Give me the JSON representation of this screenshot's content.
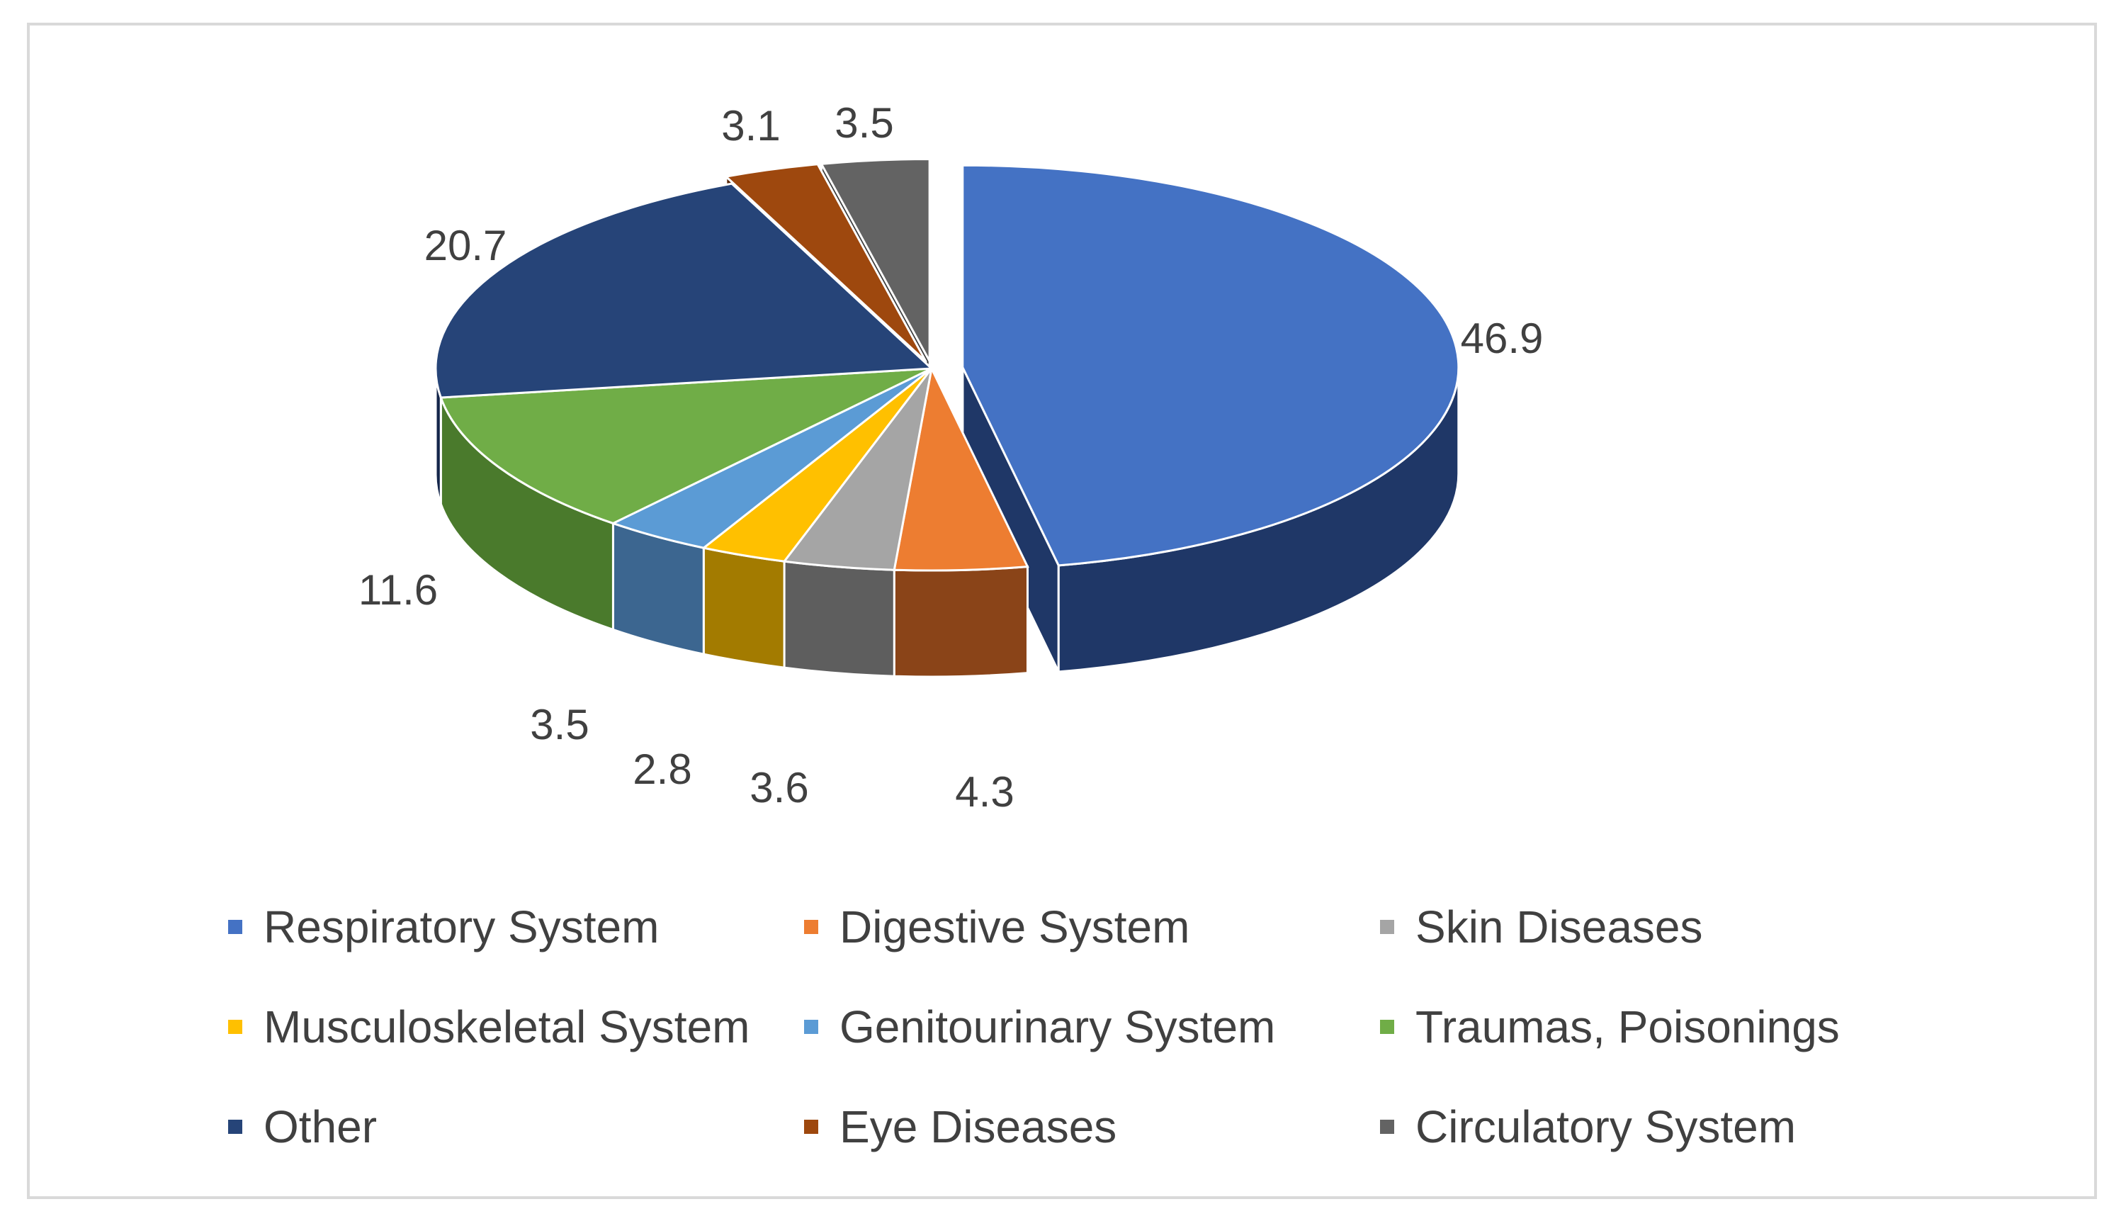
{
  "chart_data": {
    "type": "pie",
    "style": "3d exploded",
    "title": "",
    "legend_position": "bottom",
    "slices": [
      {
        "label": "Respiratory System",
        "value": 46.9,
        "color": "#4472C4",
        "dark": "#1F3767",
        "label_text": "46.9"
      },
      {
        "label": "Digestive System",
        "value": 4.3,
        "color": "#ED7D31",
        "dark": "#8A4418",
        "label_text": "4.3"
      },
      {
        "label": "Skin Diseases",
        "value": 3.6,
        "color": "#A5A5A5",
        "dark": "#5E5E5E",
        "label_text": "3.6"
      },
      {
        "label": "Musculoskeletal System",
        "value": 2.8,
        "color": "#FFC000",
        "dark": "#A37B00",
        "label_text": "2.8"
      },
      {
        "label": "Genitourinary System",
        "value": 3.5,
        "color": "#5B9BD5",
        "dark": "#3C6690",
        "label_text": "3.5"
      },
      {
        "label": "Traumas, Poisonings",
        "value": 11.6,
        "color": "#70AD47",
        "dark": "#4A7A2C",
        "label_text": "11.6"
      },
      {
        "label": "Other",
        "value": 20.7,
        "color": "#264478",
        "dark": "#14264A",
        "label_text": "20.7"
      },
      {
        "label": "Eye Diseases",
        "value": 3.1,
        "color": "#9E480E",
        "dark": "#5A2807",
        "label_text": "3.1"
      },
      {
        "label": "Circulatory System",
        "value": 3.5,
        "color": "#636363",
        "dark": "#3A3A3A",
        "label_text": "3.5"
      }
    ]
  }
}
